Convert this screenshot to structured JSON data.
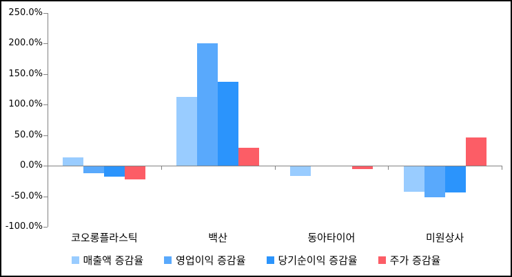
{
  "chart_data": {
    "type": "bar",
    "title": "",
    "xlabel": "",
    "ylabel": "",
    "unit": "%",
    "grid": false,
    "legend_position": "bottom",
    "categories": [
      "코오롱플라스틱",
      "백산",
      "동아타이어",
      "미원상사"
    ],
    "series": [
      {
        "name": "매출액 증감율",
        "color": "#99CCFF",
        "values": [
          14,
          113,
          -17,
          -43
        ]
      },
      {
        "name": "영업이익 증감율",
        "color": "#59A9FC",
        "values": [
          -12,
          200,
          0,
          -52
        ]
      },
      {
        "name": "당기순이익 증감율",
        "color": "#2B94FC",
        "values": [
          -18,
          138,
          0,
          -44
        ]
      },
      {
        "name": "주가 증감율",
        "color": "#FC5D66",
        "values": [
          -23,
          29,
          -6,
          46
        ]
      }
    ],
    "ylim": [
      -100,
      250
    ],
    "ytick_step": 50,
    "ytick_labels": [
      "250.0%",
      "200.0%",
      "150.0%",
      "100.0%",
      "50.0%",
      "0.0%",
      "-50.0%",
      "-100.0%"
    ]
  },
  "colors": {
    "axis": "#808080",
    "text": "#000000",
    "background": "#FFFFFF",
    "border": "#000000"
  }
}
